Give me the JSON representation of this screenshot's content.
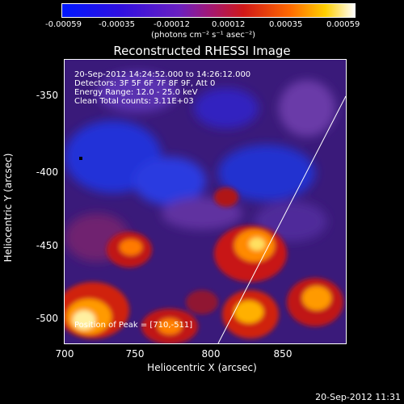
{
  "colorbar": {
    "ticks": [
      "-0.00059",
      "-0.00035",
      "-0.00012",
      "0.00012",
      "0.00035",
      "0.00059"
    ],
    "units": "(photons cm⁻² s⁻¹ asec⁻²)"
  },
  "title": "Reconstructed RHESSI Image",
  "info": {
    "time": "20-Sep-2012 14:24:52.000 to 14:26:12.000",
    "detectors": "Detectors: 3F 5F 6F 7F 8F 9F, Att 0",
    "energy": "Energy Range: 12.0 - 25.0 keV",
    "clean": "Clean      Total counts: 3.11E+03",
    "peak": "Position of Peak = [710,-511]"
  },
  "axes": {
    "xlabel": "Heliocentric X (arcsec)",
    "ylabel": "Heliocentric Y (arcsec)",
    "xticks": [
      "700",
      "750",
      "800",
      "850"
    ],
    "yticks": [
      "-350",
      "-400",
      "-450",
      "-500"
    ]
  },
  "timestamp": "20-Sep-2012 11:31"
}
